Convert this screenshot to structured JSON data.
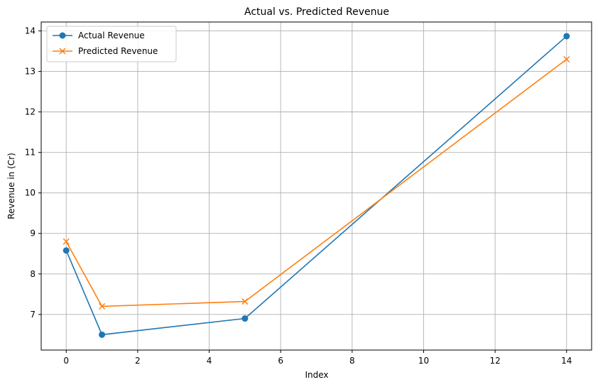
{
  "chart_data": {
    "type": "line",
    "title": "Actual vs. Predicted Revenue",
    "xlabel": "Index",
    "ylabel": "Revenue in (Cr)",
    "xlim": [
      -0.7,
      14.7
    ],
    "ylim": [
      6.12,
      14.22
    ],
    "xticks": [
      0,
      2,
      4,
      6,
      8,
      10,
      12,
      14
    ],
    "yticks": [
      7,
      8,
      9,
      10,
      11,
      12,
      13,
      14
    ],
    "grid": true,
    "legend_position": "top-left",
    "series": [
      {
        "name": "Actual Revenue",
        "color": "#1f77b4",
        "marker": "circle",
        "x": [
          0,
          1,
          5,
          14
        ],
        "y": [
          8.58,
          6.5,
          6.9,
          13.87
        ]
      },
      {
        "name": "Predicted Revenue",
        "color": "#ff7f0e",
        "marker": "x",
        "x": [
          0,
          1,
          5,
          14
        ],
        "y": [
          8.8,
          7.2,
          7.32,
          13.3
        ]
      }
    ]
  }
}
